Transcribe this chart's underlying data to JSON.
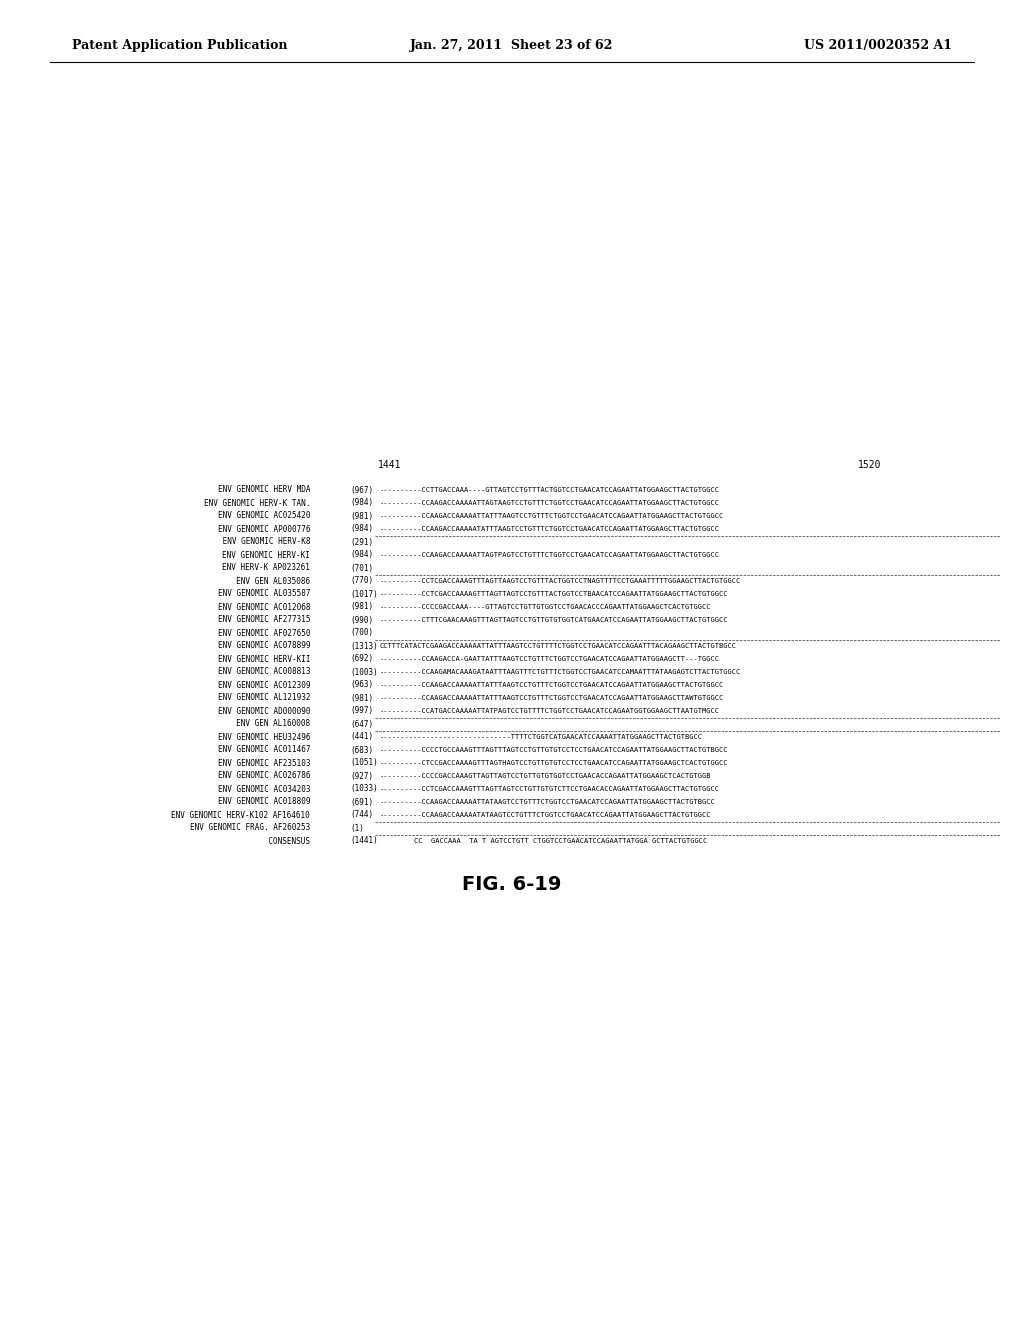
{
  "page_header_left": "Patent Application Publication",
  "page_header_center": "Jan. 27, 2011  Sheet 23 of 62",
  "page_header_right": "US 2011/0020352 A1",
  "col_marker_left": "1441",
  "col_marker_right": "1520",
  "figure_label": "FIG. 6-19",
  "rows": [
    {
      "label": "ENV GENOMIC HERV MDA",
      "num": "(967)",
      "seq": "----------CCTTGACCAAA----GTTAGTCCTGTTTACTGGTCCTGAACATCCAGAATTATGGAAGCTTACTGTGGCC"
    },
    {
      "label": "ENV GENOMIC HERV-K TAN.",
      "num": "(984)",
      "seq": "----------CCAAGACCAAAAATTAGTAAGTCCTGTTTCTGGTCCTGAACATCCAGAATTATGGAAGCTTACTGTGGCC"
    },
    {
      "label": "ENV GENOMIC AC025420",
      "num": "(981)",
      "seq": "----------CCAAGACCAAAAATTATTTAAGTCCTGTTTCTGGTCCTGAACATCCAGAATTATGGAAGCTTACTGTGGCC"
    },
    {
      "label": "ENV GENOMIC AP000776",
      "num": "(984)",
      "seq": "----------CCAAGACCAAAAATATTTAAGTCCTGTTTCTGGTCCTGAACATCCAGAATTATGGAAGCTTACTGTGGCC"
    },
    {
      "label": " ENV GENOMIC HERV-K8",
      "num": "(291)",
      "seq": ""
    },
    {
      "label": "ENV GENOMIC HERV-KI",
      "num": "(984)",
      "seq": "----------CCAAGACCAAAAATTAGTPAGTCCTGTTTCTGGTCCTGAACATCCAGAATTATGGAAGCTTACTGTGGCC"
    },
    {
      "label": "ENV HERV-K AP023261",
      "num": "(701)",
      "seq": ""
    },
    {
      "label": "     ENV GEN AL035086",
      "num": "(770)",
      "seq": "----------CCTCGACCAAAGTTTAGTTAAGTCCTGTTTACTGGTCCTNAGTTTTCCTGAAATTTTTGGAAGCTTACTGTGGCC"
    },
    {
      "label": "ENV GENOMIC AL035587",
      "num": "(1017)",
      "seq": "----------CCTCGACCAAAAGTTTAGTTAGTCCTGTTTACTGGTCCTBAACATCCAGAATTATGGAAGCTTACTGTGGCC"
    },
    {
      "label": "ENV GENOMIC AC012068",
      "num": "(981)",
      "seq": "----------CCCCGACCAAA----GTTAGTCCTGTTGTGGTCCTGAACACCCAGAATTATGGAAGCTCACTGTGGCC"
    },
    {
      "label": "ENV GENOMIC AF277315",
      "num": "(990)",
      "seq": "----------CTTTCGAACAAAGTTTAGTTAGTCCTGTTGTGTGGTCATGAACATCCAGAATTATGGAAGCTTACTGTGGCC"
    },
    {
      "label": "ENV GENOMIC AF027650",
      "num": "(700)",
      "seq": ""
    },
    {
      "label": "ENV GENOMIC AC078899",
      "num": "(1313)",
      "seq": "CCTTTCATACTCGAAGACCAAAAATTATTTAAGTCCTGTTTTCTGGTCCTGAACATCCAGAATTTACAGAAGCTTACTGTBGCC"
    },
    {
      "label": "ENV GENOMIC HERV-KII",
      "num": "(692)",
      "seq": "----------CCAAGACCA-GAATTATTTAAGTCCTGTTTCTGGTCCTGAACATCCAGAATTATGGAAGCTT---TGGCC"
    },
    {
      "label": "ENV GENOMIC AC008813",
      "num": "(1003)",
      "seq": "----------CCAAGAMACAAAGATAATTTAAGTTTCTGTTTCTGGTCCTGAACATCCAMAATTTATAAGAGTCTTACTGTGGCC"
    },
    {
      "label": "ENV GENOMIC AC012309",
      "num": "(963)",
      "seq": "----------CCAAGACCAAAAATTATTTAAGTCCTGTTTCTGGTCCTGAACATCCAGAATTATGGAAGCTTACTGTGGCC"
    },
    {
      "label": "ENV GENOMIC AL121932",
      "num": "(981)",
      "seq": "----------CCAAGACCAAAAATTATTTAAGTCCTGTTTCTGGTCCTGAACATCCAGAATTATGGAAGCTTAWTGTGGCC"
    },
    {
      "label": "ENV GENOMIC AD000090",
      "num": "(997)",
      "seq": "----------CCATGACCAAAAATTATPAGTCCTGTTTTCTGGTCCTGAACATCCAGAATGGTGGAAGCTTAATGTMGCC"
    },
    {
      "label": "     ENV GEN AL160008",
      "num": "(647)",
      "seq": ""
    },
    {
      "label": "ENV GENOMIC HEU32496",
      "num": "(441)",
      "seq": "-------------------------------TTTTCTGGTCATGAACATCCAAAATTATGGAAGCTTACTGTBGCC"
    },
    {
      "label": "ENV GENOMIC AC011467",
      "num": "(683)",
      "seq": "----------CCCCTGCCAAAGTTTAGTTTAGTCCTGTTGTGTCCTCCTGAACATCCAGAATTATGGAAGCTTACTGTBGCC"
    },
    {
      "label": "ENV GENOMIC AF235103",
      "num": "(1051)",
      "seq": "----------CTCCGACCAAAAGTTTAGTHAGTCCTGTTGTGTCCTCCTGAACATCCAGAATTATGGAAGCTCACTGTGGCC"
    },
    {
      "label": "ENV GENOMIC AC026786",
      "num": "(927)",
      "seq": "----------CCCCGACCAAAGTTAGTTAGTCCTGTTGTGTGGTCCTGAACACCAGAATTATGGAAGCTCACTGTGGB"
    },
    {
      "label": "ENV GENOMIC AC034203",
      "num": "(1033)",
      "seq": "----------CCTCGACCAAAGTTTAGTTAGTCCTGTTGTGTCTTCCTGAACACCAGAATTATGGAAGCTTACTGTGGCC"
    },
    {
      "label": "ENV GENOMIC AC018809",
      "num": "(691)",
      "seq": "----------CCAAGACCAAAAATTATAAGTCCTGTTTCTGGTCCTGAACATCCAGAATTATGGAAGCTTACTGTBGCC"
    },
    {
      "label": "ENV GENOMIC HERV-K102 AF164610",
      "num": "(744)",
      "seq": "----------CCAAGACCAAAAATATAAGTCCTGTTTCTGGTCCTGAACATCCAGAATTATGGAAGCTTACTGTGGCC"
    },
    {
      "label": "ENV GENOMIC FRAG. AF260253",
      "num": "(1)",
      "seq": ""
    },
    {
      "label": "               CONSENSUS",
      "num": "(1441)",
      "seq": "        CC  GACCAAA  TA T AGTCCTGTT CTGGTCCTGAACATCCAGAATTATGGA GCTTACTGTGGCC"
    }
  ]
}
